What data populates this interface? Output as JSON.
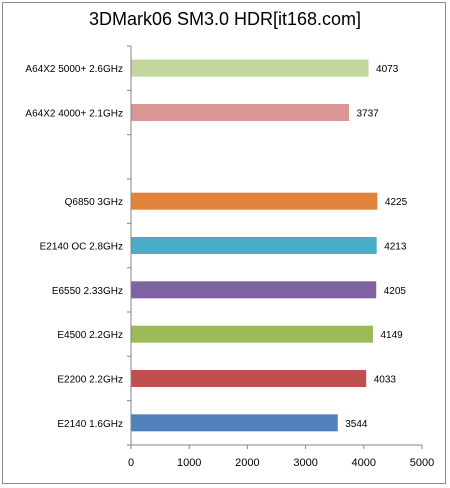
{
  "chart_data": {
    "type": "bar",
    "orientation": "horizontal",
    "title": "3DMark06 SM3.0 HDR[it168.com]",
    "xlim": [
      0,
      5000
    ],
    "xticks": [
      0,
      1000,
      2000,
      3000,
      4000,
      5000
    ],
    "grid": false,
    "legend": "none",
    "categories": [
      "A64X2 5000+ 2.6GHz",
      "A64X2 4000+ 2.1GHz",
      "",
      "Q6850 3GHz",
      "E2140 OC 2.8GHz",
      "E6550 2.33GHz",
      "E4500 2.2GHz",
      "E2200 2.2GHz",
      "E2140 1.6GHz"
    ],
    "values": [
      4073,
      3737,
      null,
      4225,
      4213,
      4205,
      4149,
      4033,
      3544
    ],
    "colors": [
      "#c3d69b",
      "#d99694",
      null,
      "#e2833c",
      "#4bacc6",
      "#7f62a1",
      "#9bbb59",
      "#c0504d",
      "#4f81bd"
    ]
  }
}
